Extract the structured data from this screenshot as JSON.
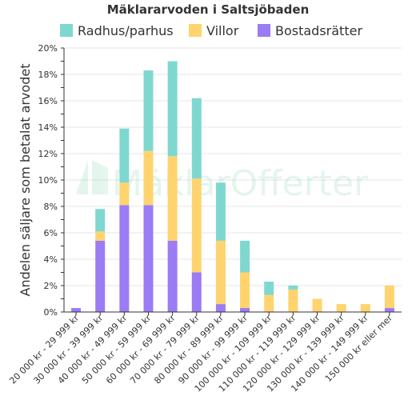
{
  "chart_data": {
    "type": "bar",
    "stacked": true,
    "title": "Mäklararvoden i Saltsjöbaden",
    "ylabel": "Andelen säljare som betalat arvodet",
    "xlabel": "",
    "ylim": [
      0,
      20
    ],
    "y_ticks": [
      "0%",
      "2%",
      "4%",
      "6%",
      "8%",
      "10%",
      "12%",
      "14%",
      "16%",
      "18%",
      "20%"
    ],
    "grid": true,
    "legend_position": "top",
    "categories": [
      "20 000 kr - 29 999 kr",
      "30 000 kr - 39 999 kr",
      "40 000 kr - 49 999 kr",
      "50 000 kr - 59 999 kr",
      "60 000 kr - 69 999 kr",
      "70 000 kr - 79 999 kr",
      "80 000 kr - 89 999 kr",
      "90 000 kr - 99 999 kr",
      "100 000 kr - 109 999 kr",
      "110 000 kr - 119 999 kr",
      "120 000 kr - 129 999 kr",
      "130 000 kr - 139 999 kr",
      "140 000 kr - 149 999 kr",
      "150 000 kr eller mer"
    ],
    "series": [
      {
        "name": "Bostadsrätter",
        "color": "#9b7cf4",
        "values": [
          0.3,
          5.4,
          8.1,
          8.1,
          5.4,
          3.0,
          0.6,
          0.3,
          0,
          0,
          0,
          0,
          0,
          0.3
        ]
      },
      {
        "name": "Villor",
        "color": "#ffd36e",
        "values": [
          0,
          0.7,
          1.7,
          4.1,
          6.4,
          7.1,
          4.8,
          2.7,
          1.3,
          1.7,
          1.0,
          0.6,
          0.6,
          1.7
        ]
      },
      {
        "name": "Radhus/parhus",
        "color": "#7fd8d0",
        "values": [
          0,
          1.7,
          4.1,
          6.1,
          7.2,
          6.1,
          4.4,
          2.4,
          1.0,
          0.3,
          0,
          0,
          0,
          0
        ]
      }
    ],
    "legend_order": [
      "Radhus/parhus",
      "Villor",
      "Bostadsrätter"
    ]
  },
  "watermark": {
    "brand": "MäklarOfferter"
  }
}
